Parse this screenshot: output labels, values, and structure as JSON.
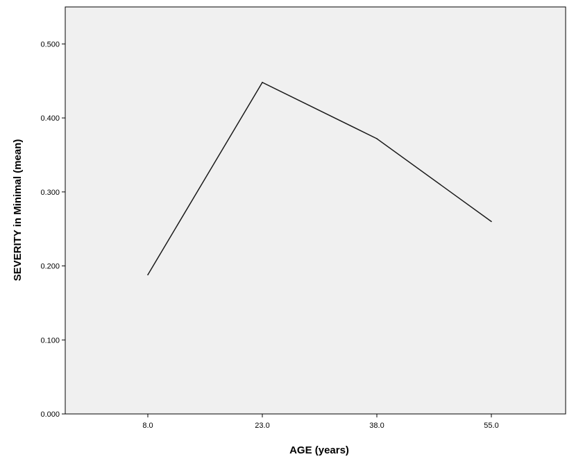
{
  "chart_data": {
    "type": "line",
    "title": "",
    "xlabel": "AGE (years)",
    "ylabel": "SEVERITY in Minimal (mean)",
    "categories": [
      "8.0",
      "23.0",
      "38.0",
      "55.0"
    ],
    "series": [
      {
        "values": [
          0.188,
          0.448,
          0.372,
          0.26
        ]
      }
    ],
    "ylim": [
      0,
      0.55
    ],
    "yticks": [
      "0.000",
      "0.100",
      "0.200",
      "0.300",
      "0.400",
      "0.500"
    ],
    "ytick_values": [
      0,
      0.1,
      0.2,
      0.3,
      0.4,
      0.5
    ],
    "grid": false,
    "legend": "none"
  },
  "colors": {
    "plot_background": "#f0f0f0",
    "line": "#1a1a1a",
    "axis": "#000000"
  }
}
